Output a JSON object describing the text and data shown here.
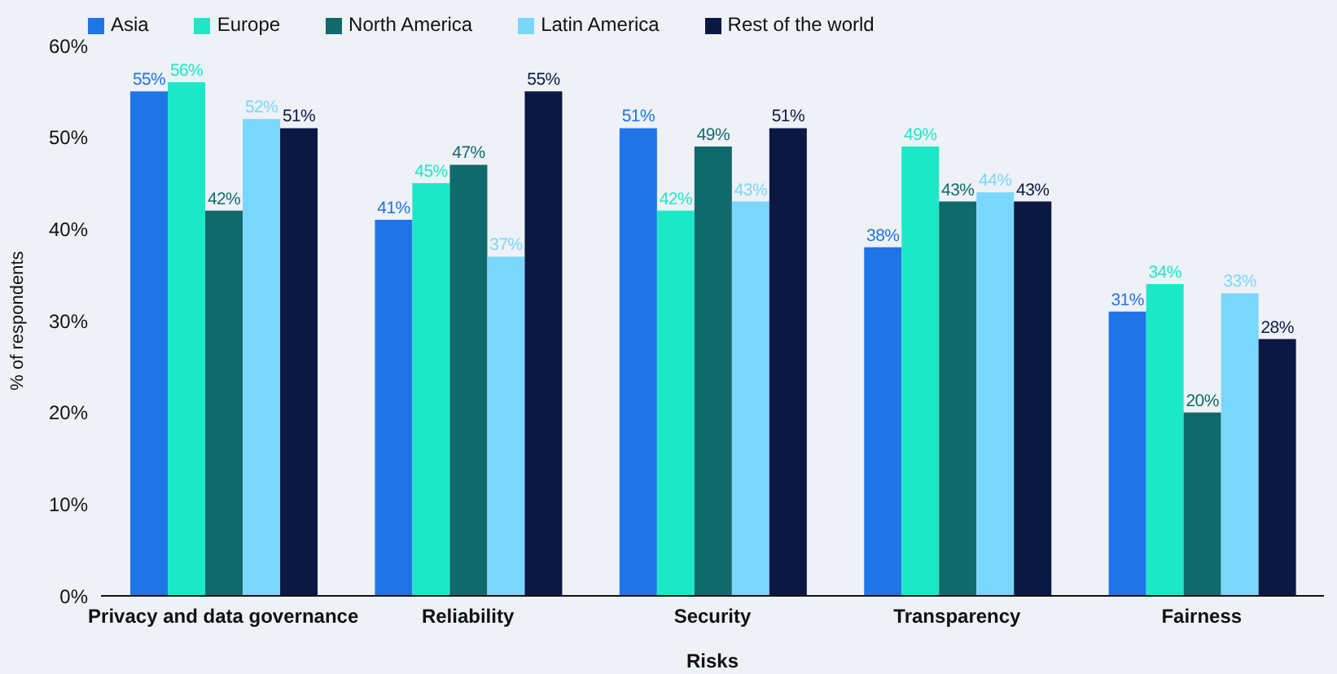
{
  "chart_data": {
    "type": "bar",
    "xlabel": "Risks",
    "ylabel": "% of respondents",
    "categories": [
      "Privacy and data governance",
      "Reliability",
      "Security",
      "Transparency",
      "Fairness"
    ],
    "series": [
      {
        "name": "Asia",
        "color": "#1f74e8",
        "values": [
          55,
          41,
          51,
          38,
          31
        ],
        "value_labels": [
          "55%",
          "41%",
          "51%",
          "38%",
          "31%"
        ]
      },
      {
        "name": "Europe",
        "color": "#1ce8c8",
        "values": [
          56,
          45,
          42,
          49,
          34
        ],
        "value_labels": [
          "56%",
          "45%",
          "42%",
          "49%",
          "34%"
        ]
      },
      {
        "name": "North America",
        "color": "#106a6c",
        "values": [
          42,
          47,
          49,
          43,
          20
        ],
        "value_labels": [
          "42%",
          "47%",
          "49%",
          "43%",
          "20%"
        ]
      },
      {
        "name": "Latin America",
        "color": "#7bd6fc",
        "values": [
          52,
          37,
          43,
          44,
          33
        ],
        "value_labels": [
          "52%",
          "37%",
          "43%",
          "44%",
          "33%"
        ]
      },
      {
        "name": "Rest of the world",
        "color": "#0b1843",
        "values": [
          51,
          55,
          51,
          43,
          28
        ],
        "value_labels": [
          "51%",
          "55%",
          "51%",
          "43%",
          "28%"
        ]
      }
    ],
    "ylim": [
      0,
      60
    ],
    "yticks": [
      {
        "value": 0,
        "label": "0%"
      },
      {
        "value": 10,
        "label": "10%"
      },
      {
        "value": 20,
        "label": "20%"
      },
      {
        "value": 30,
        "label": "30%"
      },
      {
        "value": 40,
        "label": "40%"
      },
      {
        "value": 50,
        "label": "50%"
      },
      {
        "value": 60,
        "label": "60%"
      }
    ],
    "grid": false,
    "legend": "top left"
  }
}
